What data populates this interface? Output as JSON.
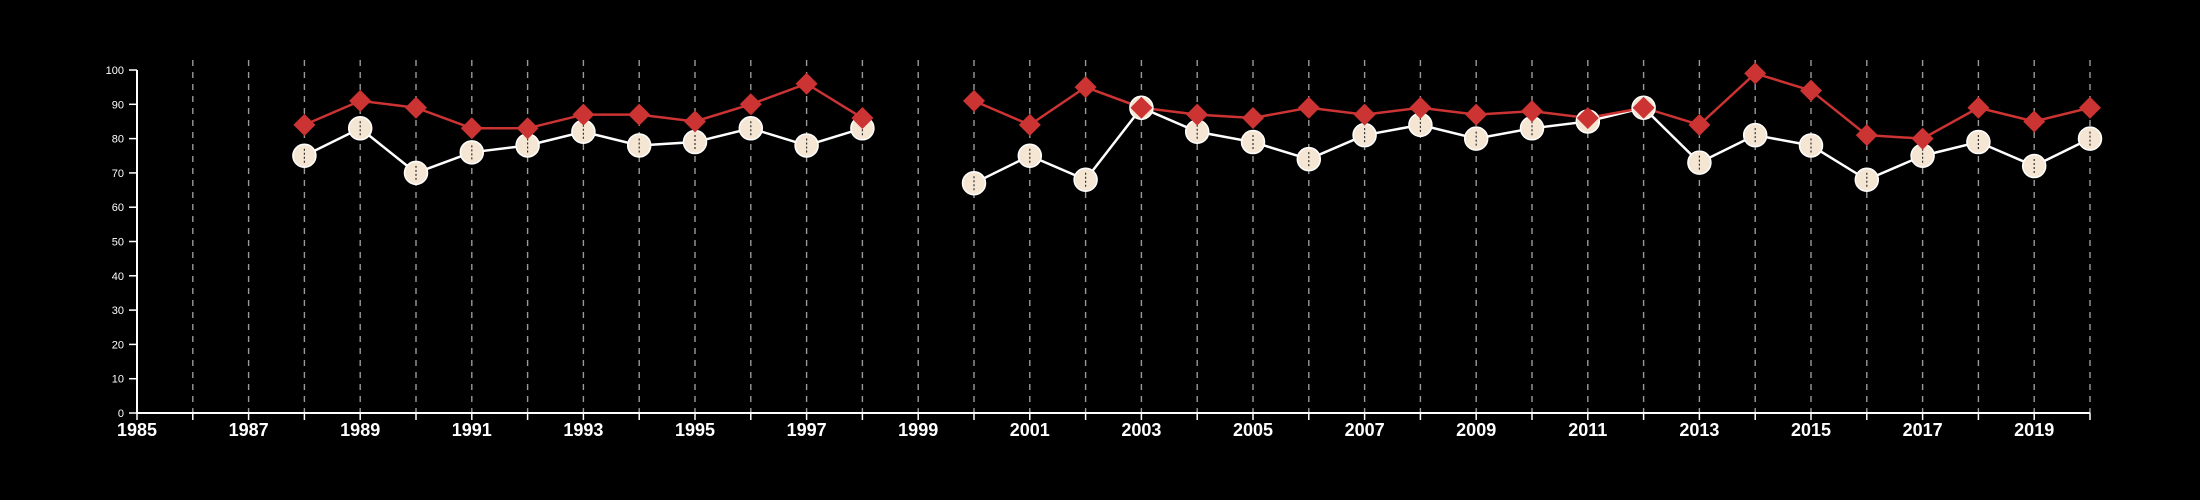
{
  "chart_data": {
    "type": "line",
    "title": "",
    "xlabel": "",
    "ylabel": "",
    "xlim": [
      1985,
      2020
    ],
    "ylim": [
      0,
      100
    ],
    "x_ticks_major": [
      "1985",
      "1987",
      "1989",
      "1991",
      "1993",
      "1995",
      "1997",
      "1999",
      "2001",
      "2003",
      "2005",
      "2007",
      "2009",
      "2011",
      "2013",
      "2015",
      "2017",
      "2019"
    ],
    "y_ticks": [
      "0",
      "10",
      "20",
      "30",
      "40",
      "50",
      "60",
      "70",
      "80",
      "90",
      "100"
    ],
    "grid": "vertical-dashed",
    "legend": "none",
    "colors": {
      "background": "#000000",
      "axis": "#ffffff",
      "grid": "#9a9a9a",
      "series_red": "#cc3333",
      "series_cream": "#f5e6d3"
    },
    "series": [
      {
        "marker": "diamond",
        "color": "#cc3333",
        "x": [
          1988,
          1989,
          1990,
          1991,
          1992,
          1993,
          1994,
          1995,
          1996,
          1997,
          1998,
          2000,
          2001,
          2002,
          2003,
          2004,
          2005,
          2006,
          2007,
          2008,
          2009,
          2010,
          2011,
          2012,
          2013,
          2014,
          2015,
          2016,
          2017,
          2018,
          2019,
          2020
        ],
        "values": [
          84,
          91,
          89,
          83,
          83,
          87,
          87,
          85,
          90,
          96,
          86,
          91,
          84,
          95,
          89,
          87,
          86,
          89,
          87,
          89,
          87,
          88,
          86,
          89,
          84,
          99,
          94,
          81,
          80,
          89,
          85,
          89
        ]
      },
      {
        "marker": "circle",
        "color": "#f5e6d3",
        "x": [
          1988,
          1989,
          1990,
          1991,
          1992,
          1993,
          1994,
          1995,
          1996,
          1997,
          1998,
          2000,
          2001,
          2002,
          2003,
          2004,
          2005,
          2006,
          2007,
          2008,
          2009,
          2010,
          2011,
          2012,
          2013,
          2014,
          2015,
          2016,
          2017,
          2018,
          2019,
          2020
        ],
        "values": [
          75,
          83,
          70,
          76,
          78,
          82,
          78,
          79,
          83,
          78,
          83,
          67,
          75,
          68,
          89,
          82,
          79,
          74,
          81,
          84,
          80,
          83,
          85,
          89,
          73,
          81,
          78,
          68,
          75,
          79,
          72,
          80
        ]
      }
    ]
  }
}
